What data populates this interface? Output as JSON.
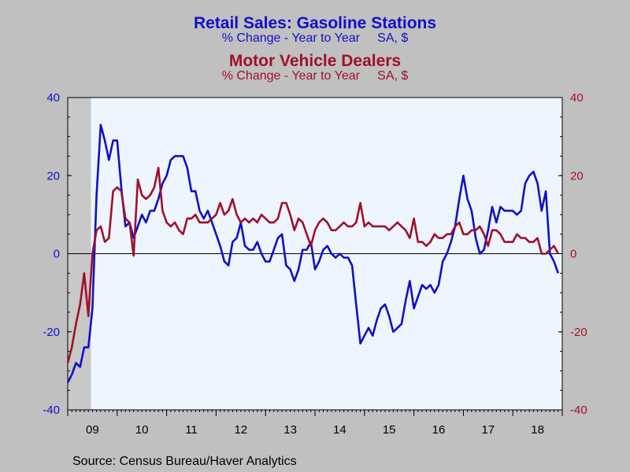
{
  "titles": {
    "series1_title": "Retail Sales: Gasoline Stations",
    "series1_subtitle": "% Change - Year to Year     SA, $",
    "series2_title": "Motor Vehicle Dealers",
    "series2_subtitle": "% Change - Year to Year     SA, $"
  },
  "source": "Source:  Census Bureau/Haver Analytics",
  "colors": {
    "background": "#c0c0c0",
    "plot_area": "#eef5ff",
    "series1": "#1010c8",
    "series2": "#a0102a",
    "recession_shade": "#c8c8c8"
  },
  "chart_data": {
    "type": "line",
    "x_unit": "year",
    "xlim": [
      2009.0,
      2019.0
    ],
    "x_tick_labels": [
      "09",
      "10",
      "11",
      "12",
      "13",
      "14",
      "15",
      "16",
      "17",
      "18"
    ],
    "ylim_left": [
      -40,
      40
    ],
    "ylim_right": [
      -40,
      40
    ],
    "y_ticks_left": [
      "40",
      "20",
      "0",
      "-20",
      "-40"
    ],
    "y_ticks_right": [
      "40",
      "20",
      "0",
      "-20",
      "-40"
    ],
    "recession_shading": [
      2009.0,
      2009.5
    ],
    "zero_line": true,
    "grid": false,
    "series": [
      {
        "name": "Retail Sales: Gasoline Stations",
        "axis": "left",
        "color": "#1010c8",
        "x": [
          2009.0,
          2009.083,
          2009.167,
          2009.25,
          2009.333,
          2009.417,
          2009.5,
          2009.583,
          2009.667,
          2009.75,
          2009.833,
          2009.917,
          2010.0,
          2010.083,
          2010.167,
          2010.25,
          2010.333,
          2010.417,
          2010.5,
          2010.583,
          2010.667,
          2010.75,
          2010.833,
          2010.917,
          2011.0,
          2011.083,
          2011.167,
          2011.25,
          2011.333,
          2011.417,
          2011.5,
          2011.583,
          2011.667,
          2011.75,
          2011.833,
          2011.917,
          2012.0,
          2012.083,
          2012.167,
          2012.25,
          2012.333,
          2012.417,
          2012.5,
          2012.583,
          2012.667,
          2012.75,
          2012.833,
          2012.917,
          2013.0,
          2013.083,
          2013.167,
          2013.25,
          2013.333,
          2013.417,
          2013.5,
          2013.583,
          2013.667,
          2013.75,
          2013.833,
          2013.917,
          2014.0,
          2014.083,
          2014.167,
          2014.25,
          2014.333,
          2014.417,
          2014.5,
          2014.583,
          2014.667,
          2014.75,
          2014.833,
          2014.917,
          2015.0,
          2015.083,
          2015.167,
          2015.25,
          2015.333,
          2015.417,
          2015.5,
          2015.583,
          2015.667,
          2015.75,
          2015.833,
          2015.917,
          2016.0,
          2016.083,
          2016.167,
          2016.25,
          2016.333,
          2016.417,
          2016.5,
          2016.583,
          2016.667,
          2016.75,
          2016.833,
          2016.917,
          2017.0,
          2017.083,
          2017.167,
          2017.25,
          2017.333,
          2017.417,
          2017.5,
          2017.583,
          2017.667,
          2017.75,
          2017.833,
          2017.917,
          2018.0,
          2018.083,
          2018.167,
          2018.25,
          2018.333,
          2018.417,
          2018.5,
          2018.583,
          2018.667,
          2018.75,
          2018.833,
          2018.917
        ],
        "y": [
          -33,
          -31,
          -28,
          -29,
          -24,
          -24,
          -14,
          15,
          33,
          29,
          24,
          29,
          29,
          17,
          7,
          8,
          4,
          7,
          10,
          8,
          11,
          11,
          14,
          18,
          20,
          24,
          25,
          25,
          25,
          22,
          16,
          16,
          11,
          9,
          11,
          8,
          5,
          2,
          -2,
          -3,
          3,
          4,
          8,
          2,
          1,
          1,
          3,
          0,
          -2,
          -2,
          1,
          4,
          5,
          -3,
          -4,
          -7,
          -4,
          1,
          1,
          3,
          -4,
          -2,
          1,
          2,
          0,
          -1,
          0,
          -1,
          -1,
          -3,
          -13,
          -23,
          -21,
          -19,
          -21,
          -17,
          -14,
          -13,
          -16,
          -20,
          -19,
          -18,
          -12,
          -7,
          -14,
          -11,
          -8,
          -9,
          -8,
          -10,
          -8,
          -2,
          0,
          3,
          7,
          14,
          20,
          14,
          11,
          4,
          0,
          1,
          6,
          12,
          8,
          12,
          11,
          11,
          11,
          10,
          11,
          18,
          20,
          21,
          18,
          11,
          16,
          0,
          -2,
          -5
        ]
      },
      {
        "name": "Motor Vehicle Dealers",
        "axis": "right",
        "color": "#a0102a",
        "x": [
          2009.0,
          2009.083,
          2009.167,
          2009.25,
          2009.333,
          2009.417,
          2009.5,
          2009.583,
          2009.667,
          2009.75,
          2009.833,
          2009.917,
          2010.0,
          2010.083,
          2010.167,
          2010.25,
          2010.333,
          2010.417,
          2010.5,
          2010.583,
          2010.667,
          2010.75,
          2010.833,
          2010.917,
          2011.0,
          2011.083,
          2011.167,
          2011.25,
          2011.333,
          2011.417,
          2011.5,
          2011.583,
          2011.667,
          2011.75,
          2011.833,
          2011.917,
          2012.0,
          2012.083,
          2012.167,
          2012.25,
          2012.333,
          2012.417,
          2012.5,
          2012.583,
          2012.667,
          2012.75,
          2012.833,
          2012.917,
          2013.0,
          2013.083,
          2013.167,
          2013.25,
          2013.333,
          2013.417,
          2013.5,
          2013.583,
          2013.667,
          2013.75,
          2013.833,
          2013.917,
          2014.0,
          2014.083,
          2014.167,
          2014.25,
          2014.333,
          2014.417,
          2014.5,
          2014.583,
          2014.667,
          2014.75,
          2014.833,
          2014.917,
          2015.0,
          2015.083,
          2015.167,
          2015.25,
          2015.333,
          2015.417,
          2015.5,
          2015.583,
          2015.667,
          2015.75,
          2015.833,
          2015.917,
          2016.0,
          2016.083,
          2016.167,
          2016.25,
          2016.333,
          2016.417,
          2016.5,
          2016.583,
          2016.667,
          2016.75,
          2016.833,
          2016.917,
          2017.0,
          2017.083,
          2017.167,
          2017.25,
          2017.333,
          2017.417,
          2017.5,
          2017.583,
          2017.667,
          2017.75,
          2017.833,
          2017.917,
          2018.0,
          2018.083,
          2018.167,
          2018.25,
          2018.333,
          2018.417,
          2018.5,
          2018.583,
          2018.667,
          2018.75,
          2018.833,
          2018.917
        ],
        "y": [
          -28,
          -24,
          -18,
          -13,
          -5,
          -16,
          0,
          6,
          7,
          3,
          4,
          16,
          17,
          16,
          9,
          8,
          -0.5,
          19,
          15,
          14,
          15,
          17,
          22,
          11,
          8,
          7,
          8,
          6,
          5,
          9,
          9,
          10,
          8,
          8,
          8,
          9,
          10,
          13,
          10,
          11,
          14,
          10,
          8,
          9,
          8,
          9,
          8,
          10,
          9,
          8,
          8,
          9,
          13,
          13,
          10,
          6,
          9,
          8,
          5,
          2,
          6,
          8,
          9,
          8,
          6,
          6,
          7,
          8,
          7,
          7,
          8,
          13,
          7,
          8,
          7,
          7,
          7,
          7,
          6,
          7,
          8,
          7,
          6,
          4,
          9,
          3,
          3,
          2,
          3,
          5,
          4,
          4,
          5,
          5,
          7,
          8,
          5,
          5,
          6,
          6,
          7,
          5,
          2,
          6,
          6,
          5,
          3,
          3,
          3,
          5,
          4,
          4,
          3,
          3,
          4,
          0,
          0,
          1,
          2,
          0
        ]
      }
    ]
  }
}
